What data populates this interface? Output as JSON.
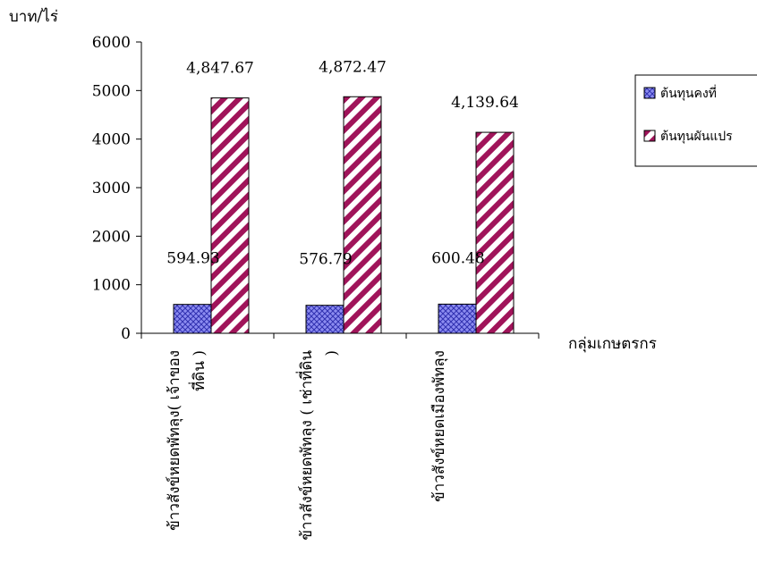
{
  "chart_data": {
    "type": "bar",
    "title": "",
    "ylabel": "บาท/ไร่",
    "xlabel": "กลุ่มเกษตรกร",
    "ylim": [
      0,
      6000
    ],
    "yticks": [
      "0",
      "1000",
      "2000",
      "3000",
      "4000",
      "5000",
      "6000"
    ],
    "categories": [
      "ข้าวสังข์หยดพัทลุง( เจ้าของที่ดิน )",
      "ข้าวสังข์หยดพัทลุง ( เช่าที่ดิน )",
      "ข้าวสังข์หยดเมืองพัทลุง"
    ],
    "category_lines": [
      [
        "ข้าวสังข์หยดพัทลุง( เจ้าของ",
        "ที่ดิน )"
      ],
      [
        "ข้าวสังข์หยดพัทลุง ( เช่าที่ดิน",
        ")"
      ],
      [
        "ข้าวสังข์หยดเมืองพัทลุง"
      ]
    ],
    "series": [
      {
        "name": "ต้นทุนคงที่",
        "values": [
          594.93,
          576.79,
          600.48
        ],
        "labels": [
          "594.93",
          "576.79",
          "600.48"
        ],
        "color": "#5b5bd6",
        "pattern": "crosshatch"
      },
      {
        "name": "ต้นทุนผันแปร",
        "values": [
          4847.67,
          4872.47,
          4139.64
        ],
        "labels": [
          "4,847.67",
          "4,872.47",
          "4,139.64"
        ],
        "color": "#a0145a",
        "pattern": "diagonal"
      }
    ],
    "legend": "right",
    "grid": false
  }
}
